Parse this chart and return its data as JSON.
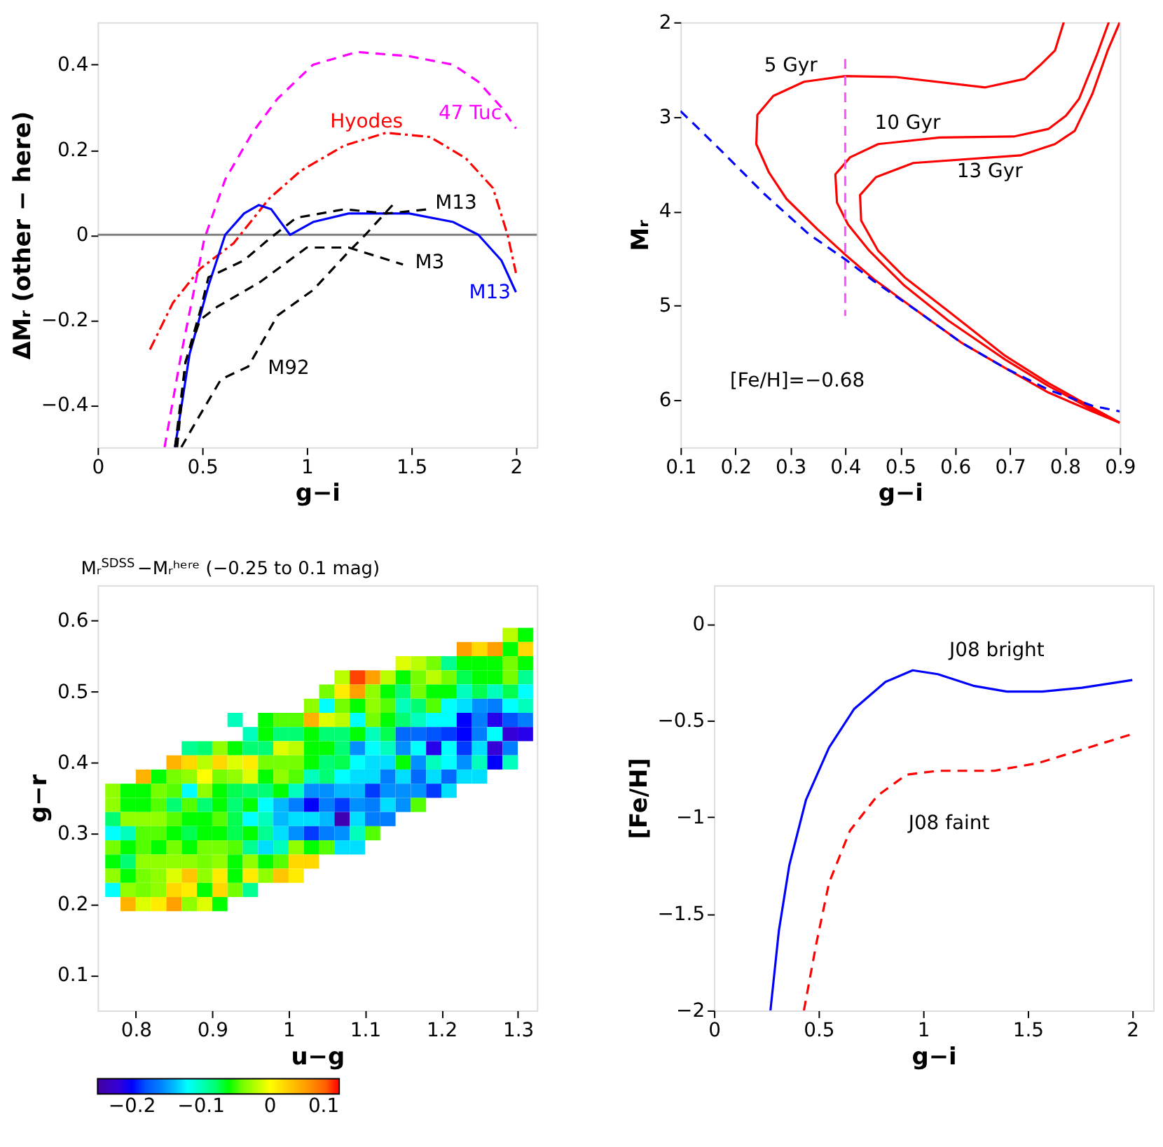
{
  "chart_data": [
    {
      "type": "line",
      "xlabel": "g−i",
      "ylabel": "ΔMᵣ (other − here)",
      "xlim": [
        0,
        2.1
      ],
      "ylim": [
        -0.5,
        0.5
      ],
      "xticks": [
        0,
        0.5,
        1,
        1.5,
        2
      ],
      "yticks": [
        -0.4,
        -0.2,
        0,
        0.2,
        0.4
      ],
      "ref_lines": [
        {
          "axis": "y",
          "value": 0,
          "color": "#808080"
        }
      ],
      "series": [
        {
          "color": "#ff00ff",
          "line_style": "dashed",
          "x": [
            0.32,
            0.4,
            0.51,
            0.61,
            0.74,
            0.86,
            1.03,
            1.24,
            1.49,
            1.7,
            1.82,
            1.93,
            2.0
          ],
          "values": [
            -0.5,
            -0.28,
            -0.01,
            0.13,
            0.24,
            0.32,
            0.4,
            0.43,
            0.42,
            0.4,
            0.36,
            0.3,
            0.25
          ]
        },
        {
          "color": "#ff0000",
          "line_style": "dashdot",
          "x": [
            0.25,
            0.36,
            0.49,
            0.65,
            0.82,
            0.97,
            1.18,
            1.38,
            1.59,
            1.76,
            1.89,
            1.96,
            2.0
          ],
          "values": [
            -0.27,
            -0.16,
            -0.08,
            -0.02,
            0.085,
            0.15,
            0.21,
            0.24,
            0.23,
            0.18,
            0.11,
            0.0,
            -0.09
          ]
        },
        {
          "color": "#0000ff",
          "line_style": "solid",
          "x": [
            0.37,
            0.44,
            0.53,
            0.61,
            0.7,
            0.77,
            0.83,
            0.92,
            1.03,
            1.2,
            1.49,
            1.7,
            1.82,
            1.93,
            2.0
          ],
          "values": [
            -0.5,
            -0.28,
            -0.12,
            0.0,
            0.05,
            0.07,
            0.06,
            0.0,
            0.03,
            0.05,
            0.05,
            0.03,
            0.0,
            -0.06,
            -0.135
          ]
        },
        {
          "color": "#000000",
          "line_style": "dashed",
          "x": [
            0.38,
            0.42,
            0.49,
            0.53,
            0.7,
            0.82,
            0.95,
            1.18,
            1.38,
            1.58
          ],
          "values": [
            -0.5,
            -0.3,
            -0.18,
            -0.1,
            -0.06,
            -0.01,
            0.04,
            0.06,
            0.05,
            0.06
          ]
        },
        {
          "color": "#000000",
          "line_style": "dashed",
          "x": [
            0.37,
            0.42,
            0.49,
            0.57,
            0.78,
            1.0,
            1.2,
            1.46
          ],
          "values": [
            -0.5,
            -0.3,
            -0.2,
            -0.17,
            -0.11,
            -0.03,
            -0.03,
            -0.07
          ]
        },
        {
          "color": "#000000",
          "line_style": "dashed",
          "x": [
            0.4,
            0.47,
            0.59,
            0.72,
            0.86,
            1.03,
            1.2,
            1.28,
            1.41
          ],
          "values": [
            -0.5,
            -0.44,
            -0.34,
            -0.31,
            -0.19,
            -0.13,
            -0.04,
            0.0,
            0.07
          ]
        }
      ],
      "annotations": [
        "47 Tuc",
        "Hyodes",
        "M13",
        "M3",
        "M13",
        "M92"
      ]
    },
    {
      "type": "line",
      "xlabel": "g−i",
      "ylabel": "Mᵣ",
      "xlim": [
        0.1,
        0.9
      ],
      "ylim": [
        6.5,
        2
      ],
      "xticks": [
        0.1,
        0.2,
        0.3,
        0.4,
        0.5,
        0.6,
        0.7,
        0.8,
        0.9
      ],
      "yticks": [
        2,
        3,
        4,
        5,
        6
      ],
      "series": [
        {
          "color": "#ff0000",
          "line_style": "solid",
          "x": [
            0.798,
            0.782,
            0.754,
            0.727,
            0.655,
            0.492,
            0.4,
            0.325,
            0.269,
            0.24,
            0.238,
            0.261,
            0.293,
            0.349,
            0.4,
            0.452,
            0.532,
            0.611,
            0.691,
            0.77,
            0.85,
            0.9
          ],
          "values": [
            2.0,
            2.3,
            2.46,
            2.6,
            2.69,
            2.58,
            2.57,
            2.63,
            2.78,
            2.98,
            3.29,
            3.59,
            3.87,
            4.19,
            4.46,
            4.72,
            5.06,
            5.39,
            5.66,
            5.92,
            6.12,
            6.24
          ]
        },
        {
          "color": "#ff0000",
          "line_style": "solid",
          "x": [
            0.88,
            0.858,
            0.826,
            0.802,
            0.77,
            0.707,
            0.572,
            0.46,
            0.409,
            0.382,
            0.385,
            0.405,
            0.444,
            0.508,
            0.588,
            0.691,
            0.77,
            0.85,
            0.9
          ],
          "values": [
            2.0,
            2.35,
            2.81,
            2.99,
            3.13,
            3.21,
            3.22,
            3.29,
            3.43,
            3.61,
            3.91,
            4.14,
            4.42,
            4.79,
            5.16,
            5.57,
            5.85,
            6.1,
            6.24
          ]
        },
        {
          "color": "#ff0000",
          "line_style": "solid",
          "x": [
            0.9,
            0.878,
            0.85,
            0.818,
            0.782,
            0.719,
            0.524,
            0.456,
            0.427,
            0.429,
            0.46,
            0.508,
            0.588,
            0.691,
            0.77,
            0.85,
            0.9
          ],
          "values": [
            2.0,
            2.3,
            2.76,
            3.15,
            3.29,
            3.41,
            3.49,
            3.64,
            3.83,
            4.1,
            4.42,
            4.7,
            5.06,
            5.53,
            5.82,
            6.08,
            6.24
          ]
        },
        {
          "color": "#ff55ff",
          "line_style": "dashed",
          "x": [
            0.4,
            0.4
          ],
          "values": [
            2.39,
            5.11
          ]
        },
        {
          "color": "#0000ff",
          "line_style": "dashed",
          "x": [
            0.1,
            0.174,
            0.253,
            0.333,
            0.4,
            0.452,
            0.532,
            0.611,
            0.691,
            0.77,
            0.85,
            0.9
          ],
          "values": [
            2.94,
            3.36,
            3.82,
            4.24,
            4.51,
            4.74,
            5.06,
            5.39,
            5.66,
            5.89,
            6.06,
            6.12
          ]
        }
      ],
      "annotations": [
        "5 Gyr",
        "10 Gyr",
        "13 Gyr",
        "[Fe/H]=−0.68"
      ]
    },
    {
      "type": "heatmap",
      "title": "Mᵣ$^{SDSS}$−Mᵣʰᵉʳᵉ (−0.25 to 0.1 mag)",
      "xlabel": "u−g",
      "ylabel": "g−r",
      "xlim": [
        0.75,
        1.325
      ],
      "ylim": [
        0.05,
        0.65
      ],
      "xticks": [
        0.8,
        0.9,
        1,
        1.1,
        1.2,
        1.3
      ],
      "yticks": [
        0.1,
        0.2,
        0.3,
        0.4,
        0.5,
        0.6
      ],
      "clim": [
        -0.25,
        0.1
      ],
      "cticks": [
        -0.2,
        -0.1,
        0,
        0.1
      ],
      "x": [
        0.77,
        0.79,
        0.81,
        0.83,
        0.85,
        0.87,
        0.89,
        0.91,
        0.93,
        0.95,
        0.97,
        0.99,
        1.01,
        1.03,
        1.05,
        1.07,
        1.09,
        1.11,
        1.13,
        1.15,
        1.17,
        1.19,
        1.21,
        1.23,
        1.25,
        1.27,
        1.29,
        1.31
      ],
      "y": [
        0.58,
        0.56,
        0.54,
        0.52,
        0.5,
        0.48,
        0.46,
        0.44,
        0.42,
        0.4,
        0.38,
        0.36,
        0.34,
        0.32,
        0.3,
        0.28,
        0.26,
        0.24,
        0.22,
        0.2
      ],
      "cells": [
        [
          null,
          null,
          null,
          null,
          null,
          null,
          null,
          null,
          null,
          null,
          null,
          null,
          null,
          null,
          null,
          null,
          null,
          null,
          null,
          null,
          null,
          null,
          null,
          null,
          null,
          null,
          -0.02,
          -0.06
        ],
        [
          null,
          null,
          null,
          null,
          null,
          null,
          null,
          null,
          null,
          null,
          null,
          null,
          null,
          null,
          null,
          null,
          null,
          null,
          null,
          null,
          null,
          null,
          null,
          0.05,
          0.02,
          0.05,
          -0.06,
          0.02
        ],
        [
          null,
          null,
          null,
          null,
          null,
          null,
          null,
          null,
          null,
          null,
          null,
          null,
          null,
          null,
          null,
          null,
          null,
          null,
          null,
          -0.01,
          -0.02,
          -0.04,
          -0.09,
          -0.06,
          -0.06,
          -0.06,
          -0.04,
          -0.06
        ],
        [
          null,
          null,
          null,
          null,
          null,
          null,
          null,
          null,
          null,
          null,
          null,
          null,
          null,
          null,
          null,
          -0.02,
          0.09,
          0.05,
          -0.02,
          -0.06,
          -0.04,
          -0.02,
          -0.04,
          -0.07,
          -0.06,
          -0.06,
          -0.04,
          -0.09
        ],
        [
          null,
          null,
          null,
          null,
          null,
          null,
          null,
          null,
          null,
          null,
          null,
          null,
          null,
          null,
          -0.04,
          0.01,
          0.05,
          -0.03,
          -0.06,
          -0.08,
          -0.04,
          -0.06,
          -0.06,
          -0.1,
          -0.07,
          -0.1,
          -0.07,
          -0.12
        ],
        [
          null,
          null,
          null,
          null,
          null,
          null,
          null,
          null,
          null,
          null,
          null,
          null,
          null,
          -0.03,
          -0.12,
          -0.04,
          -0.06,
          -0.03,
          -0.05,
          -0.1,
          -0.08,
          -0.05,
          -0.12,
          -0.13,
          -0.15,
          -0.16,
          -0.12,
          -0.1
        ],
        [
          null,
          null,
          null,
          null,
          null,
          null,
          null,
          null,
          -0.1,
          null,
          -0.06,
          -0.05,
          -0.05,
          0.04,
          -0.01,
          -0.02,
          -0.12,
          -0.04,
          -0.06,
          -0.08,
          -0.1,
          -0.12,
          -0.12,
          -0.2,
          -0.16,
          -0.21,
          -0.18,
          -0.16
        ],
        [
          null,
          null,
          null,
          null,
          null,
          null,
          null,
          null,
          null,
          -0.1,
          -0.06,
          -0.08,
          -0.08,
          -0.06,
          -0.08,
          -0.08,
          -0.06,
          -0.1,
          -0.07,
          -0.17,
          -0.17,
          -0.18,
          -0.19,
          -0.2,
          -0.16,
          -0.12,
          -0.22,
          -0.21
        ],
        [
          null,
          null,
          null,
          null,
          null,
          -0.09,
          -0.08,
          -0.03,
          -0.06,
          -0.08,
          -0.08,
          -0.01,
          -0.02,
          -0.06,
          -0.06,
          -0.08,
          -0.15,
          -0.12,
          -0.1,
          -0.15,
          -0.12,
          -0.21,
          -0.12,
          -0.19,
          -0.13,
          -0.22,
          -0.16,
          null
        ],
        [
          null,
          null,
          null,
          null,
          0.04,
          0.02,
          -0.02,
          0.02,
          -0.01,
          0.01,
          -0.04,
          -0.04,
          -0.04,
          -0.06,
          -0.08,
          -0.07,
          -0.12,
          -0.13,
          -0.13,
          -0.06,
          -0.15,
          -0.1,
          -0.12,
          -0.15,
          -0.1,
          -0.2,
          -0.1,
          null
        ],
        [
          null,
          null,
          0.04,
          -0.06,
          -0.04,
          -0.03,
          0.0,
          -0.04,
          -0.03,
          -0.01,
          -0.06,
          -0.03,
          -0.05,
          -0.1,
          -0.08,
          -0.12,
          -0.13,
          -0.13,
          -0.16,
          -0.13,
          -0.17,
          -0.13,
          -0.17,
          -0.13,
          -0.13,
          null,
          null,
          null
        ],
        [
          -0.03,
          -0.06,
          -0.06,
          -0.04,
          -0.05,
          -0.12,
          -0.03,
          -0.06,
          -0.07,
          -0.08,
          -0.08,
          -0.06,
          -0.1,
          -0.15,
          -0.15,
          -0.14,
          -0.14,
          -0.19,
          -0.15,
          -0.15,
          -0.15,
          -0.19,
          -0.13,
          null,
          null,
          null,
          null,
          null
        ],
        [
          -0.03,
          -0.06,
          -0.06,
          -0.05,
          -0.08,
          -0.05,
          -0.08,
          -0.06,
          -0.08,
          -0.06,
          -0.12,
          -0.14,
          -0.16,
          -0.2,
          -0.16,
          -0.19,
          -0.15,
          -0.16,
          -0.13,
          -0.15,
          -0.05,
          null,
          null,
          null,
          null,
          null,
          null,
          null
        ],
        [
          -0.08,
          -0.03,
          -0.03,
          -0.03,
          -0.05,
          -0.06,
          -0.06,
          -0.05,
          -0.07,
          -0.12,
          -0.1,
          -0.14,
          -0.13,
          -0.13,
          -0.14,
          -0.24,
          -0.13,
          -0.16,
          -0.16,
          null,
          null,
          null,
          null,
          null,
          null,
          null,
          null,
          null
        ],
        [
          -0.12,
          -0.1,
          -0.05,
          -0.05,
          -0.06,
          -0.07,
          -0.06,
          -0.06,
          -0.07,
          -0.06,
          -0.09,
          -0.13,
          -0.15,
          -0.19,
          -0.16,
          -0.15,
          -0.1,
          -0.05,
          null,
          null,
          null,
          null,
          null,
          null,
          null,
          null,
          null,
          null
        ],
        [
          -0.04,
          -0.06,
          -0.05,
          -0.06,
          -0.04,
          -0.06,
          -0.04,
          -0.04,
          -0.05,
          -0.09,
          -0.13,
          -0.1,
          -0.03,
          -0.06,
          -0.05,
          -0.13,
          -0.13,
          null,
          null,
          null,
          null,
          null,
          null,
          null,
          null,
          null,
          null,
          null
        ],
        [
          -0.06,
          -0.08,
          -0.03,
          -0.03,
          -0.03,
          -0.03,
          -0.04,
          -0.03,
          -0.06,
          -0.03,
          -0.06,
          -0.05,
          0.02,
          0.02,
          null,
          null,
          null,
          null,
          null,
          null,
          null,
          null,
          null,
          null,
          null,
          null,
          null,
          null
        ],
        [
          -0.03,
          -0.06,
          -0.04,
          -0.03,
          -0.01,
          0.03,
          -0.03,
          0.01,
          -0.06,
          0.01,
          -0.03,
          0.03,
          0.01,
          null,
          null,
          null,
          null,
          null,
          null,
          null,
          null,
          null,
          null,
          null,
          null,
          null,
          null,
          null
        ],
        [
          -0.12,
          -0.03,
          -0.04,
          -0.03,
          0.02,
          0.01,
          -0.06,
          0.02,
          -0.04,
          -0.09,
          null,
          null,
          null,
          null,
          null,
          null,
          null,
          null,
          null,
          null,
          null,
          null,
          null,
          null,
          null,
          null,
          null,
          null
        ],
        [
          null,
          0.04,
          -0.01,
          0.01,
          0.05,
          -0.03,
          -0.01,
          -0.06,
          null,
          null,
          null,
          null,
          null,
          null,
          null,
          null,
          null,
          null,
          null,
          null,
          null,
          null,
          null,
          null,
          null,
          null,
          null,
          null
        ]
      ]
    },
    {
      "type": "line",
      "xlabel": "g−i",
      "ylabel": "[Fe/H]",
      "xlim": [
        0,
        2.1
      ],
      "ylim": [
        -2,
        0.2
      ],
      "xticks": [
        0,
        0.5,
        1,
        1.5,
        2
      ],
      "yticks": [
        -2,
        -1.5,
        -1,
        -0.5,
        0
      ],
      "series": [
        {
          "color": "#0000ff",
          "line_style": "solid",
          "x": [
            0.27,
            0.31,
            0.36,
            0.44,
            0.55,
            0.67,
            0.82,
            0.95,
            1.07,
            1.24,
            1.4,
            1.57,
            1.76,
            2.0
          ],
          "values": [
            -2.0,
            -1.59,
            -1.25,
            -0.91,
            -0.64,
            -0.44,
            -0.3,
            -0.24,
            -0.26,
            -0.32,
            -0.35,
            -0.35,
            -0.33,
            -0.29
          ]
        },
        {
          "color": "#ff0000",
          "line_style": "dashed",
          "x": [
            0.43,
            0.49,
            0.55,
            0.65,
            0.78,
            0.92,
            1.07,
            1.34,
            1.55,
            1.76,
            2.0
          ],
          "values": [
            -2.0,
            -1.65,
            -1.34,
            -1.07,
            -0.89,
            -0.78,
            -0.76,
            -0.76,
            -0.72,
            -0.65,
            -0.57
          ]
        }
      ],
      "annotations": [
        "J08 bright",
        "J08 faint"
      ]
    }
  ]
}
